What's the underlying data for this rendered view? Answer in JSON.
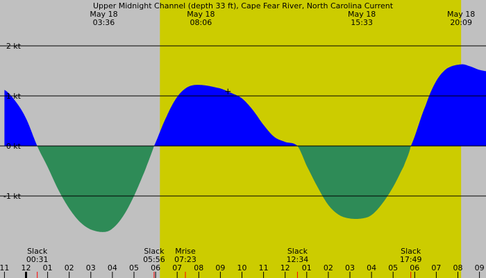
{
  "chart_data": {
    "type": "area",
    "title": "Upper Midnight Channel (depth 33 ft), Cape Fear River, North Carolina Current",
    "unit": "kt",
    "xlim": [
      -1.0,
      9.58
    ],
    "ylim": [
      -2.2,
      2.5
    ],
    "y_ticks": [
      {
        "value": 2,
        "label": "2 kt"
      },
      {
        "value": 1,
        "label": "1 kt"
      },
      {
        "value": 0,
        "label": "0 kt"
      },
      {
        "value": -1,
        "label": "-1 kt"
      }
    ],
    "x_ticks": [
      {
        "hour": -1,
        "label": "11"
      },
      {
        "hour": 0,
        "label": "12"
      },
      {
        "hour": 1,
        "label": "01"
      },
      {
        "hour": 2,
        "label": "02"
      },
      {
        "hour": 3,
        "label": "03"
      },
      {
        "hour": 4,
        "label": "04"
      },
      {
        "hour": 5,
        "label": "05"
      },
      {
        "hour": 6,
        "label": "06"
      },
      {
        "hour": 7,
        "label": "07"
      },
      {
        "hour": 8,
        "label": "08"
      },
      {
        "hour": 9,
        "label": "09"
      },
      {
        "hour": 10,
        "label": "10"
      },
      {
        "hour": 11,
        "label": "11"
      },
      {
        "hour": 12,
        "label": "12"
      },
      {
        "hour": 13,
        "label": "01"
      },
      {
        "hour": 14,
        "label": "02"
      },
      {
        "hour": 15,
        "label": "03"
      },
      {
        "hour": 16,
        "label": "04"
      },
      {
        "hour": 17,
        "label": "05"
      },
      {
        "hour": 18,
        "label": "06"
      },
      {
        "hour": 19,
        "label": "07"
      },
      {
        "hour": 20,
        "label": "08"
      },
      {
        "hour": 21,
        "label": "09"
      }
    ],
    "daylight": {
      "start_hour": 6.2,
      "end_hour": 20.15
    },
    "top_labels": [
      {
        "hour": 3.6,
        "date": "May 18",
        "time": "03:36"
      },
      {
        "hour": 8.1,
        "date": "May 18",
        "time": "08:06"
      },
      {
        "hour": 15.55,
        "date": "May 18",
        "time": "15:33"
      },
      {
        "hour": 20.15,
        "date": "May 18",
        "time": "20:09"
      }
    ],
    "events": [
      {
        "hour": 0.52,
        "name": "Slack",
        "time": "00:31"
      },
      {
        "hour": 5.93,
        "name": "Slack",
        "time": "05:56"
      },
      {
        "hour": 7.38,
        "name": "Mrise",
        "time": "07:23"
      },
      {
        "hour": 12.57,
        "name": "Slack",
        "time": "12:34"
      },
      {
        "hour": 17.82,
        "name": "Slack",
        "time": "17:49"
      }
    ],
    "curve": {
      "hours": [
        -1.0,
        -0.5,
        0.0,
        0.52,
        1.0,
        1.5,
        2.0,
        2.5,
        3.0,
        3.6,
        4.0,
        4.5,
        5.0,
        5.5,
        5.93,
        6.5,
        7.0,
        7.5,
        8.06,
        9.0,
        9.5,
        10.0,
        10.5,
        11.0,
        11.5,
        12.0,
        12.57,
        13.0,
        13.5,
        14.0,
        14.5,
        15.0,
        15.55,
        16.0,
        16.5,
        17.0,
        17.5,
        17.82,
        18.5,
        19.0,
        19.5,
        20.15,
        20.5,
        21.0,
        21.58
      ],
      "values": [
        1.12,
        0.9,
        0.55,
        0.0,
        -0.42,
        -0.88,
        -1.25,
        -1.52,
        -1.67,
        -1.72,
        -1.65,
        -1.4,
        -1.0,
        -0.5,
        0.0,
        0.58,
        0.98,
        1.18,
        1.22,
        1.15,
        1.06,
        0.95,
        0.72,
        0.42,
        0.18,
        0.08,
        0.0,
        -0.4,
        -0.82,
        -1.18,
        -1.38,
        -1.45,
        -1.45,
        -1.38,
        -1.15,
        -0.82,
        -0.4,
        0.0,
        0.8,
        1.3,
        1.55,
        1.63,
        1.6,
        1.52,
        1.48
      ]
    },
    "ebb_marker_hour": 9.35,
    "colors": {
      "night": "#c0c0c0",
      "day": "#cccc00",
      "flood": "#0000ff",
      "ebb": "#2e8b57",
      "event_tick": "#ff0000",
      "midnight_tick": "#000000"
    }
  }
}
